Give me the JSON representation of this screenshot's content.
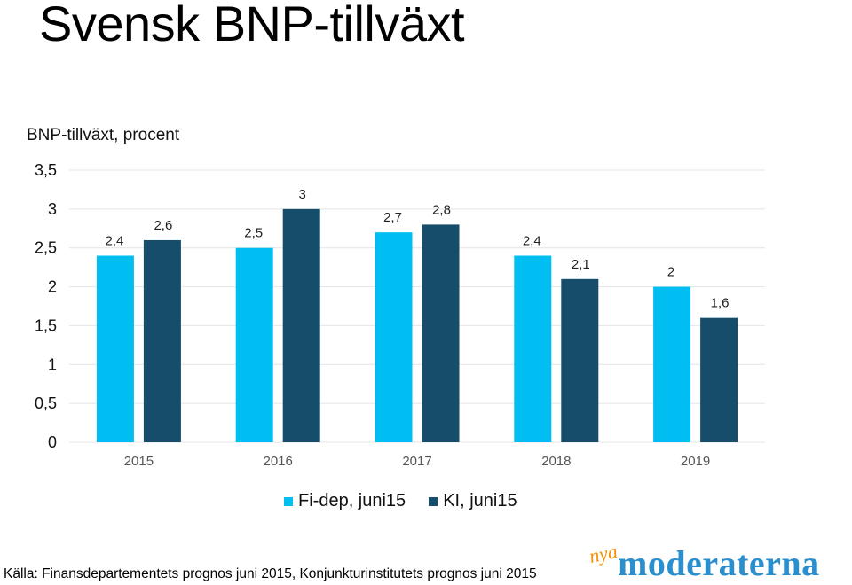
{
  "title": "Svensk BNP-tillväxt",
  "subtitle": "BNP-tillväxt, procent",
  "colors": {
    "series1": "#00bef2",
    "series2": "#154d6b",
    "grid": "#e4e4e4"
  },
  "legend": [
    {
      "label": "Fi-dep, juni15",
      "color": "#00bef2"
    },
    {
      "label": "KI, juni15",
      "color": "#154d6b"
    }
  ],
  "source": "Källa: Finansdepartementets prognos juni 2015, Konjunkturinstitutets prognos juni 2015",
  "logo": {
    "small": "nya",
    "main": "moderaterna"
  },
  "chart_data": {
    "type": "bar",
    "categories": [
      "2015",
      "2016",
      "2017",
      "2018",
      "2019"
    ],
    "series": [
      {
        "name": "Fi-dep, juni15",
        "values": [
          2.4,
          2.5,
          2.7,
          2.4,
          2.0
        ],
        "labels": [
          "2,4",
          "2,5",
          "2,7",
          "2,4",
          "2"
        ]
      },
      {
        "name": "KI, juni15",
        "values": [
          2.6,
          3.0,
          2.8,
          2.1,
          1.6
        ],
        "labels": [
          "2,6",
          "3",
          "2,8",
          "2,1",
          "1,6"
        ]
      }
    ],
    "ylim": [
      0,
      3.5
    ],
    "yticks": [
      0,
      0.5,
      1,
      1.5,
      2,
      2.5,
      3,
      3.5
    ],
    "ytick_labels": [
      "0",
      "0,5",
      "1",
      "1,5",
      "2",
      "2,5",
      "3",
      "3,5"
    ],
    "grid": true,
    "legend_position": "bottom"
  }
}
